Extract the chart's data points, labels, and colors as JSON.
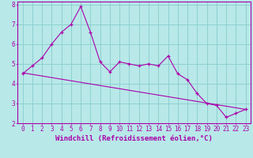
{
  "line1_x": [
    0,
    1,
    2,
    3,
    4,
    5,
    6,
    7,
    8,
    9,
    10,
    11,
    12,
    13,
    14,
    15,
    16,
    17,
    18,
    19,
    20,
    21,
    22,
    23
  ],
  "line1_y": [
    4.5,
    4.9,
    5.3,
    6.0,
    6.6,
    7.0,
    7.9,
    6.6,
    5.1,
    4.6,
    5.1,
    5.0,
    4.9,
    5.0,
    4.9,
    5.4,
    4.5,
    4.2,
    3.5,
    3.0,
    2.9,
    2.3,
    2.5,
    2.7
  ],
  "line2_x": [
    0,
    23
  ],
  "line2_y": [
    4.55,
    2.7
  ],
  "line_color": "#aa00aa",
  "background_color": "#b8e8e8",
  "grid_color": "#88cccc",
  "xlabel": "Windchill (Refroidissement éolien,°C)",
  "xlim_min": -0.5,
  "xlim_max": 23.5,
  "ylim_min": 2.0,
  "ylim_max": 8.15,
  "yticks": [
    2,
    3,
    4,
    5,
    6,
    7,
    8
  ],
  "xticks": [
    0,
    1,
    2,
    3,
    4,
    5,
    6,
    7,
    8,
    9,
    10,
    11,
    12,
    13,
    14,
    15,
    16,
    17,
    18,
    19,
    20,
    21,
    22,
    23
  ],
  "tick_fontsize": 5.5,
  "xlabel_fontsize": 6.5
}
